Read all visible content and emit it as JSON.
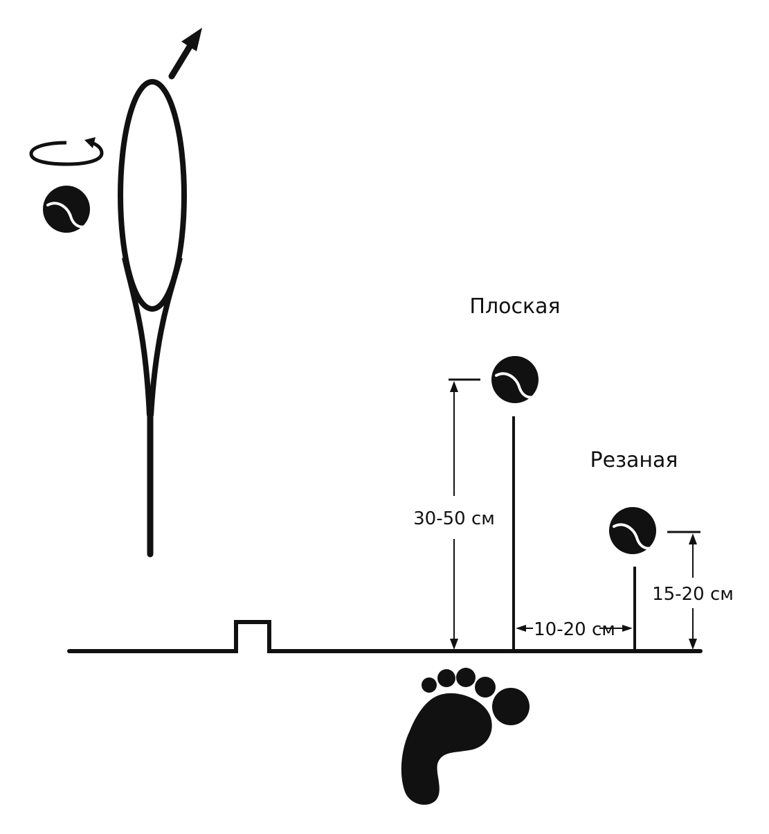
{
  "labels": {
    "flat": "Плоская",
    "slice": "Резаная",
    "flat_height": "30-50 см",
    "slice_height": "15-20 см",
    "offset": "10-20 см"
  },
  "colors": {
    "ink": "#111111",
    "background": "#ffffff"
  },
  "icons": {
    "racket": "tennis-racket-icon",
    "ball": "tennis-ball-icon",
    "spin": "rotation-arrow-icon",
    "direction": "up-right-arrow-icon",
    "footprint": "footprint-icon",
    "net": "net-post-icon"
  }
}
